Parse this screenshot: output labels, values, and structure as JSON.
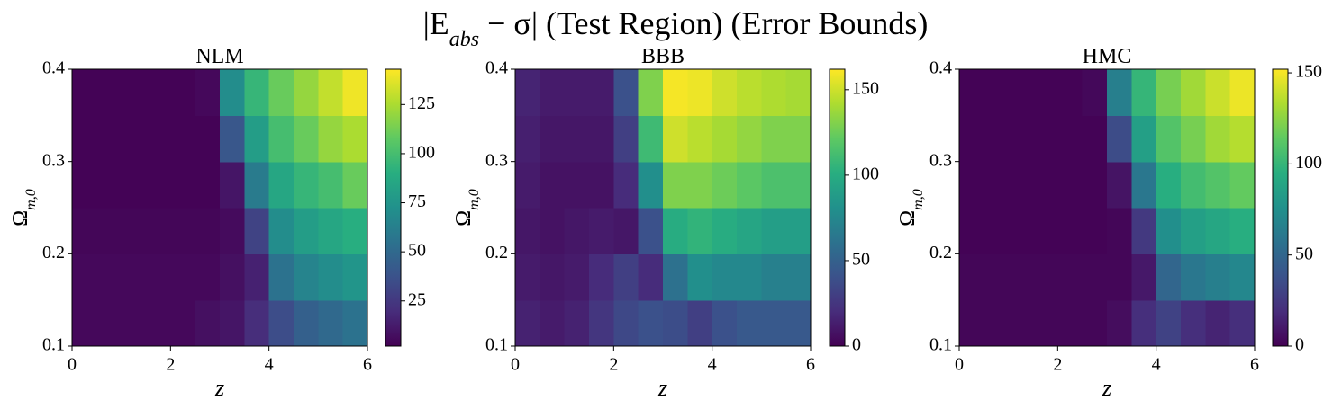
{
  "title": [
    "|E",
    "abs",
    " − σ| (Test Region) (Error Bounds)"
  ],
  "chart_data": [
    {
      "type": "heatmap",
      "title": "NLM",
      "xlabel": "z",
      "ylabel": [
        "Ω",
        "m,0"
      ],
      "colormap": "viridis",
      "x": [
        0.25,
        0.75,
        1.25,
        1.75,
        2.25,
        2.75,
        3.25,
        3.75,
        4.25,
        4.75,
        5.25,
        5.75
      ],
      "y": [
        0.125,
        0.175,
        0.225,
        0.275,
        0.325,
        0.375
      ],
      "values": [
        [
          5,
          5,
          5,
          5,
          5,
          8,
          10,
          20,
          35,
          45,
          50,
          55
        ],
        [
          5,
          5,
          5,
          5,
          5,
          5,
          8,
          15,
          55,
          65,
          70,
          75
        ],
        [
          4,
          4,
          4,
          4,
          4,
          4,
          6,
          30,
          70,
          80,
          85,
          90
        ],
        [
          3,
          3,
          3,
          3,
          3,
          3,
          10,
          60,
          85,
          95,
          100,
          110
        ],
        [
          3,
          3,
          3,
          3,
          3,
          3,
          40,
          80,
          100,
          110,
          120,
          125
        ],
        [
          3,
          3,
          3,
          3,
          3,
          5,
          70,
          95,
          110,
          120,
          130,
          140
        ]
      ],
      "xlim": [
        0,
        6
      ],
      "xticks": [
        0,
        2,
        4,
        6
      ],
      "ylim": [
        0.1,
        0.4
      ],
      "yticks": [
        0.1,
        0.2,
        0.3,
        0.4
      ],
      "clim": [
        2,
        143
      ],
      "cticks": [
        25,
        50,
        75,
        100,
        125
      ]
    },
    {
      "type": "heatmap",
      "title": "BBB",
      "xlabel": "z",
      "ylabel": [
        "Ω",
        "m,0"
      ],
      "colormap": "viridis",
      "x": [
        0.25,
        0.75,
        1.25,
        1.75,
        2.25,
        2.75,
        3.25,
        3.75,
        4.25,
        4.75,
        5.25,
        5.75
      ],
      "y": [
        0.125,
        0.175,
        0.225,
        0.275,
        0.325,
        0.375
      ],
      "values": [
        [
          15,
          12,
          15,
          25,
          35,
          40,
          38,
          30,
          40,
          45,
          45,
          45
        ],
        [
          12,
          10,
          12,
          20,
          30,
          20,
          60,
          80,
          75,
          75,
          70,
          70
        ],
        [
          10,
          8,
          10,
          12,
          10,
          40,
          100,
          105,
          100,
          95,
          90,
          90
        ],
        [
          12,
          8,
          8,
          8,
          20,
          80,
          130,
          130,
          125,
          120,
          115,
          115
        ],
        [
          14,
          10,
          10,
          10,
          30,
          110,
          150,
          145,
          140,
          135,
          130,
          130
        ],
        [
          16,
          12,
          12,
          12,
          40,
          130,
          160,
          158,
          150,
          145,
          142,
          140
        ]
      ],
      "xlim": [
        0,
        6
      ],
      "xticks": [
        0,
        2,
        4,
        6
      ],
      "ylim": [
        0.1,
        0.4
      ],
      "yticks": [
        0.1,
        0.2,
        0.3,
        0.4
      ],
      "clim": [
        0,
        162
      ],
      "cticks": [
        0,
        50,
        100,
        150
      ]
    },
    {
      "type": "heatmap",
      "title": "HMC",
      "xlabel": "z",
      "ylabel": [
        "Ω",
        "m,0"
      ],
      "colormap": "viridis",
      "x": [
        0.25,
        0.75,
        1.25,
        1.75,
        2.25,
        2.75,
        3.25,
        3.75,
        4.25,
        4.75,
        5.25,
        5.75
      ],
      "y": [
        0.125,
        0.175,
        0.225,
        0.275,
        0.325,
        0.375
      ],
      "values": [
        [
          2,
          2,
          2,
          2,
          2,
          2,
          5,
          20,
          30,
          20,
          15,
          20
        ],
        [
          2,
          2,
          2,
          2,
          2,
          2,
          2,
          10,
          50,
          60,
          65,
          70
        ],
        [
          1,
          1,
          1,
          1,
          1,
          1,
          2,
          25,
          75,
          85,
          90,
          95
        ],
        [
          1,
          1,
          1,
          1,
          1,
          1,
          8,
          60,
          95,
          105,
          110,
          115
        ],
        [
          1,
          1,
          1,
          1,
          1,
          1,
          35,
          85,
          110,
          120,
          130,
          135
        ],
        [
          1,
          1,
          1,
          1,
          1,
          3,
          65,
          100,
          120,
          130,
          140,
          148
        ]
      ],
      "xlim": [
        0,
        6
      ],
      "xticks": [
        0,
        2,
        4,
        6
      ],
      "ylim": [
        0.1,
        0.4
      ],
      "yticks": [
        0.1,
        0.2,
        0.3,
        0.4
      ],
      "clim": [
        0,
        152
      ],
      "cticks": [
        0,
        50,
        100,
        150
      ]
    }
  ]
}
